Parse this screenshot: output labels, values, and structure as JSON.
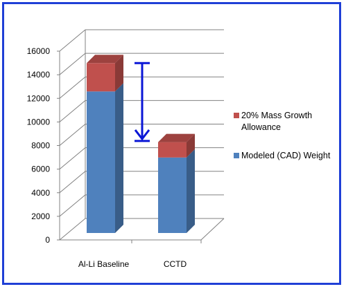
{
  "chart_data": {
    "type": "bar",
    "stacked": true,
    "three_d": true,
    "categories": [
      "Al-Li Baseline",
      "CCTD"
    ],
    "series": [
      {
        "name": "Modeled (CAD) Weight",
        "values": [
          12000,
          6400
        ],
        "color": "#4f81bd"
      },
      {
        "name": "20% Mass Growth Allowance",
        "values": [
          2400,
          1300
        ],
        "color": "#c0504d"
      }
    ],
    "ylim": [
      0,
      16000
    ],
    "yticks": [
      0,
      2000,
      4000,
      6000,
      8000,
      10000,
      12000,
      14000,
      16000
    ],
    "grid": true,
    "legend_position": "right",
    "legend_entries": [
      "20% Mass Growth Allowance",
      "Modeled (CAD) Weight"
    ],
    "legend_lines": [
      [
        "20% Mass Growth",
        "Allowance"
      ],
      [
        "Modeled (CAD) Weight"
      ]
    ],
    "annotation": {
      "type": "double-arrow",
      "from": 14400,
      "to": 7800,
      "color": "#0a16d6"
    }
  },
  "colors": {
    "border": "#1f3fd6"
  }
}
